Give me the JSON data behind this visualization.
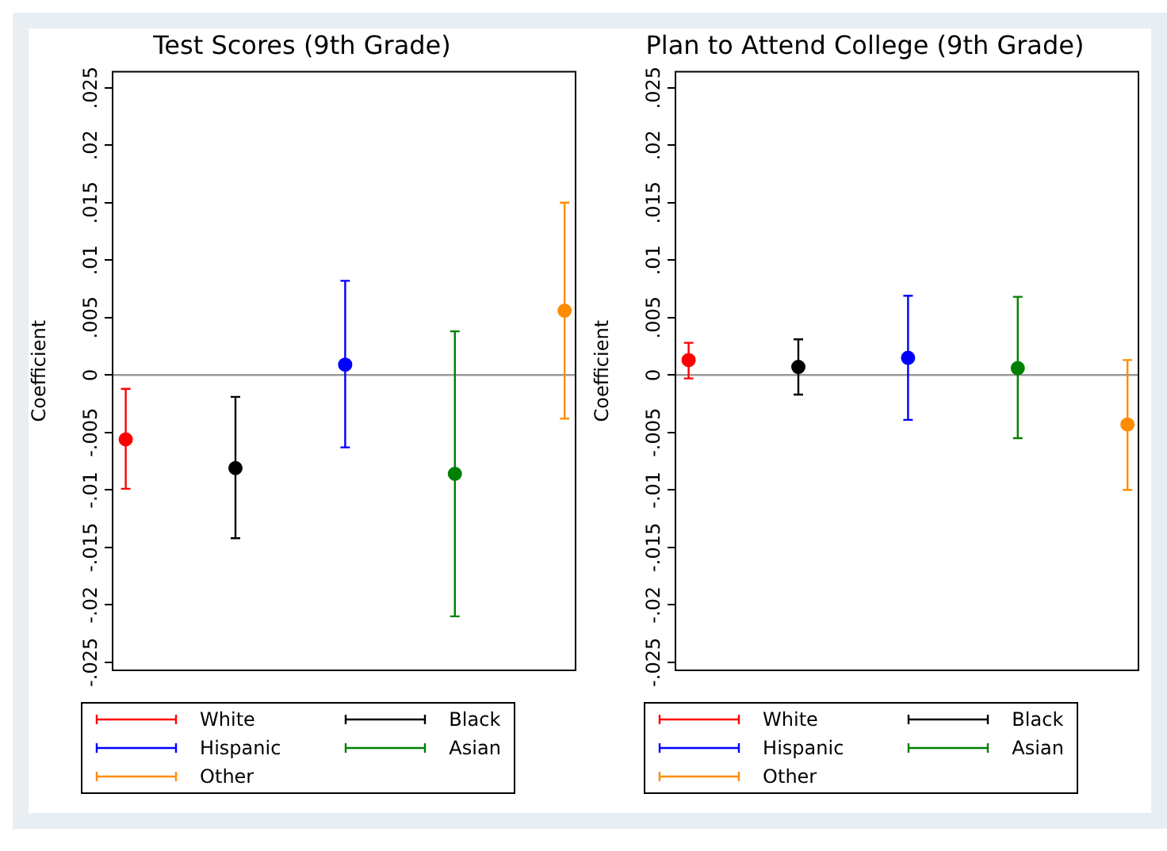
{
  "chart_data": [
    {
      "type": "scatter",
      "title": "Test Scores (9th Grade)",
      "ylabel": "Coefficient",
      "categories": [
        null,
        null,
        null,
        null,
        null
      ],
      "series": [
        {
          "name": "White",
          "color": "#ff0000",
          "values": [
            -0.0056,
            null,
            null,
            null,
            null
          ],
          "errors": [
            [
              -0.0099,
              -0.0012
            ],
            null,
            null,
            null,
            null
          ]
        },
        {
          "name": "Black",
          "color": "#000000",
          "values": [
            null,
            -0.0081,
            null,
            null,
            null
          ],
          "errors": [
            null,
            [
              -0.0142,
              -0.0019
            ],
            null,
            null,
            null
          ]
        },
        {
          "name": "Hispanic",
          "color": "#0000ff",
          "values": [
            null,
            null,
            0.0009,
            null,
            null
          ],
          "errors": [
            null,
            null,
            [
              -0.0063,
              0.0082
            ],
            null,
            null
          ]
        },
        {
          "name": "Asian",
          "color": "#008000",
          "values": [
            null,
            null,
            null,
            -0.0086,
            null
          ],
          "errors": [
            null,
            null,
            null,
            [
              -0.021,
              0.0038
            ],
            null
          ]
        },
        {
          "name": "Other",
          "color": "#ff8c00",
          "values": [
            null,
            null,
            null,
            null,
            0.0056
          ],
          "errors": [
            null,
            null,
            null,
            null,
            [
              -0.0038,
              0.015
            ]
          ]
        }
      ],
      "ylim": [
        -0.0257,
        0.0264
      ],
      "yticks": [
        {
          "value": -0.025,
          "label": "-.025"
        },
        {
          "value": -0.02,
          "label": "-.02"
        },
        {
          "value": -0.015,
          "label": "-.015"
        },
        {
          "value": -0.01,
          "label": "-.01"
        },
        {
          "value": -0.005,
          "label": "-.005"
        },
        0,
        {
          "value": 0.005,
          "label": ".005"
        },
        {
          "value": 0.01,
          "label": ".01"
        },
        {
          "value": 0.015,
          "label": ".015"
        },
        {
          "value": 0.02,
          "label": ".02"
        },
        {
          "value": 0.025,
          "label": ".025"
        }
      ],
      "ref_lines": [
        {
          "axis": "y",
          "value": 0,
          "color": "#999999"
        }
      ],
      "legend": "bottom",
      "tick_labels": "y",
      "marker": "circle"
    },
    {
      "type": "scatter",
      "title": "Plan to Attend College (9th Grade)",
      "ylabel": "Coefficient",
      "categories": [
        null,
        null,
        null,
        null,
        null
      ],
      "series": [
        {
          "name": "White",
          "color": "#ff0000",
          "values": [
            0.0013,
            null,
            null,
            null,
            null
          ],
          "errors": [
            [
              -0.0003,
              0.0028
            ],
            null,
            null,
            null,
            null
          ]
        },
        {
          "name": "Black",
          "color": "#000000",
          "values": [
            null,
            0.0007,
            null,
            null,
            null
          ],
          "errors": [
            null,
            [
              -0.0017,
              0.0031
            ],
            null,
            null,
            null
          ]
        },
        {
          "name": "Hispanic",
          "color": "#0000ff",
          "values": [
            null,
            null,
            0.0015,
            null,
            null
          ],
          "errors": [
            null,
            null,
            [
              -0.0039,
              0.0069
            ],
            null,
            null
          ]
        },
        {
          "name": "Asian",
          "color": "#008000",
          "values": [
            null,
            null,
            null,
            0.0006,
            null
          ],
          "errors": [
            null,
            null,
            null,
            [
              -0.0055,
              0.0068
            ],
            null
          ]
        },
        {
          "name": "Other",
          "color": "#ff8c00",
          "values": [
            null,
            null,
            null,
            null,
            -0.0043
          ],
          "errors": [
            null,
            null,
            null,
            null,
            [
              -0.01,
              0.0013
            ]
          ]
        }
      ],
      "ylim": [
        -0.0257,
        0.0264
      ],
      "yticks": [
        {
          "value": -0.025,
          "label": "-.025"
        },
        {
          "value": -0.02,
          "label": "-.02"
        },
        {
          "value": -0.015,
          "label": "-.015"
        },
        {
          "value": -0.01,
          "label": "-.01"
        },
        {
          "value": -0.005,
          "label": "-.005"
        },
        0,
        {
          "value": 0.005,
          "label": ".005"
        },
        {
          "value": 0.01,
          "label": ".01"
        },
        {
          "value": 0.015,
          "label": ".015"
        },
        {
          "value": 0.02,
          "label": ".02"
        },
        {
          "value": 0.025,
          "label": ".025"
        }
      ],
      "ref_lines": [
        {
          "axis": "y",
          "value": 0,
          "color": "#999999"
        }
      ],
      "legend": "bottom",
      "tick_labels": "y",
      "marker": "circle"
    }
  ]
}
